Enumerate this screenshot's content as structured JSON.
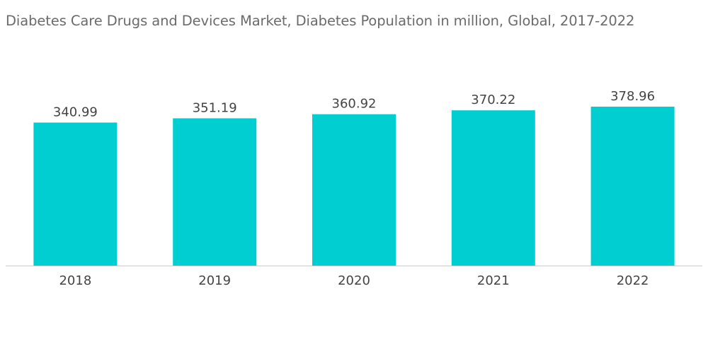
{
  "chart_data": {
    "type": "bar",
    "title": "Diabetes Care Drugs and Devices Market, Diabetes Population in million, Global, 2017-2022",
    "categories": [
      "2018",
      "2019",
      "2020",
      "2021",
      "2022"
    ],
    "values": [
      340.99,
      351.19,
      360.92,
      370.22,
      378.96
    ],
    "value_labels": [
      "340.99",
      "351.19",
      "360.92",
      "370.22",
      "378.96"
    ],
    "xlabel": "",
    "ylabel": "",
    "ylim": [
      0,
      378.96
    ],
    "grid": false,
    "bar_color": "#00ced1",
    "axis_color": "#cccccc"
  }
}
